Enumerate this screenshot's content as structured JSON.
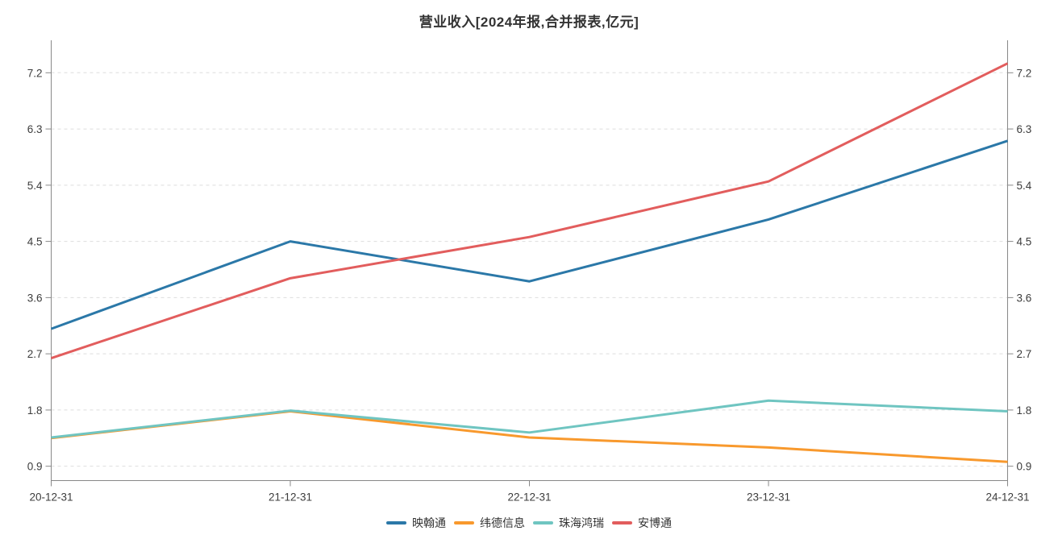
{
  "chart_data": {
    "type": "line",
    "title": "营业收入[2024年报,合并报表,亿元]",
    "categories": [
      "20-12-31",
      "21-12-31",
      "22-12-31",
      "23-12-31",
      "24-12-31"
    ],
    "series": [
      {
        "name": "映翰通",
        "color": "#2b78a8",
        "values": [
          3.1,
          4.5,
          3.86,
          4.85,
          6.11
        ]
      },
      {
        "name": "纬德信息",
        "color": "#f8992d",
        "values": [
          1.35,
          1.78,
          1.36,
          1.2,
          0.97
        ]
      },
      {
        "name": "珠海鸿瑞",
        "color": "#6fc5c1",
        "values": [
          1.36,
          1.79,
          1.44,
          1.95,
          1.78
        ]
      },
      {
        "name": "安博通",
        "color": "#e25d5d",
        "values": [
          2.63,
          3.91,
          4.57,
          5.46,
          7.35
        ]
      }
    ],
    "xlabel": "",
    "ylabel": "",
    "y_ticks": [
      0.9,
      1.8,
      2.7,
      3.6,
      4.5,
      5.4,
      6.3,
      7.2
    ],
    "ylim": [
      0.67,
      7.72
    ],
    "grid": "horizontal-dashed",
    "legend_position": "bottom",
    "dual_y_axis": true
  },
  "style": {
    "background": "#ffffff",
    "axis_color": "#888888",
    "grid_color": "#dddddd",
    "label_color": "#3c3c3c",
    "title_color": "#333333",
    "line_width": 3
  }
}
